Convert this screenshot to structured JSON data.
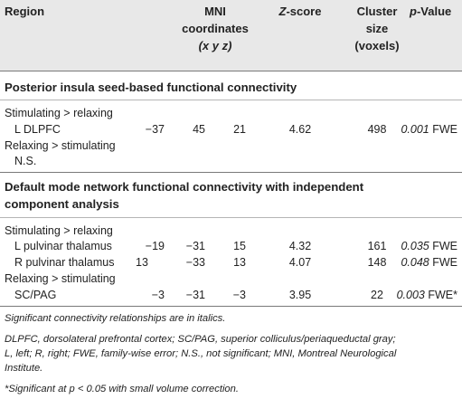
{
  "header": {
    "region": "Region",
    "mni_line1": "MNI",
    "mni_line2": "coordinates",
    "mni_line3": "(x y z)",
    "z_italic": "Z",
    "z_rest": "-score",
    "cluster_line1": "Cluster",
    "cluster_line2": "size",
    "cluster_line3": "(voxels)",
    "p_italic": "p",
    "p_rest": "-Value"
  },
  "sections": [
    {
      "title": "Posterior insula seed-based functional connectivity",
      "rows": [
        {
          "region": "Stimulating > relaxing"
        },
        {
          "region": "L DLPFC",
          "x": "−37",
          "y": "45",
          "z": "21",
          "zscore": "4.62",
          "cluster": "498",
          "p": "0.001",
          "p_suffix": "FWE"
        },
        {
          "region": "Relaxing > stimulating"
        },
        {
          "region": "N.S."
        }
      ]
    },
    {
      "title_line1": "Default mode network functional connectivity with independent",
      "title_line2": "component analysis",
      "rows": [
        {
          "region": "Stimulating > relaxing"
        },
        {
          "region": "L pulvinar thalamus",
          "x": "−19",
          "y": "−31",
          "z": "15",
          "zscore": "4.32",
          "cluster": "161",
          "p": "0.035",
          "p_suffix": "FWE"
        },
        {
          "region": "R pulvinar thalamus",
          "x": "13",
          "y": "−33",
          "z": "13",
          "zscore": "4.07",
          "cluster": "148",
          "p": "0.048",
          "p_suffix": "FWE"
        },
        {
          "region": "Relaxing > stimulating"
        },
        {
          "region": "SC/PAG",
          "x": "−3",
          "y": "−31",
          "z": "−3",
          "zscore": "3.95",
          "cluster": "22",
          "p": "0.003",
          "p_suffix": "FWE*"
        }
      ]
    }
  ],
  "footnotes": {
    "note1": "Significant connectivity relationships are in italics.",
    "note2_line1": "DLPFC, dorsolateral prefrontal cortex; SC/PAG, superior colliculus/periaqueductal gray;",
    "note2_line2": "L, left; R, right; FWE, family-wise error; N.S., not significant; MNI, Montreal Neurological",
    "note2_line3": "Institute.",
    "note3": "*Significant at p < 0.05 with small volume correction."
  }
}
